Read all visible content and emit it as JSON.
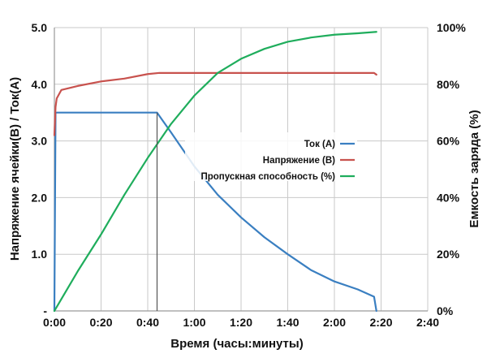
{
  "chart_data": {
    "type": "line",
    "xlabel": "Время (часы:минуты)",
    "ylabel_left": "Напряжение ячейки(В) / Ток(А)",
    "ylabel_right": "Емкость заряда (%)",
    "x_ticks": [
      "0:00",
      "0:20",
      "0:40",
      "1:00",
      "1:20",
      "1:40",
      "2:00",
      "2:20",
      "2:40"
    ],
    "x_range_minutes": [
      0,
      160
    ],
    "y_left_ticks": [
      "-",
      "1.0",
      "2.0",
      "3.0",
      "4.0",
      "5.0"
    ],
    "y_left_range": [
      0,
      5
    ],
    "y_right_ticks": [
      "0%",
      "20%",
      "40%",
      "60%",
      "80%",
      "100%"
    ],
    "y_right_range": [
      0,
      100
    ],
    "grid": true,
    "legend_position": "center-right",
    "series": [
      {
        "name": "Ток (A)",
        "axis": "left",
        "color": "#3a7fc1",
        "x": [
          0,
          0.5,
          1,
          5,
          20,
          40,
          44,
          50,
          60,
          70,
          80,
          90,
          100,
          110,
          120,
          130,
          137,
          138
        ],
        "y": [
          0,
          3.5,
          3.5,
          3.5,
          3.5,
          3.5,
          3.5,
          3.15,
          2.55,
          2.05,
          1.65,
          1.3,
          1.0,
          0.72,
          0.52,
          0.38,
          0.25,
          0
        ]
      },
      {
        "name": "Напряжение (В)",
        "axis": "left",
        "color": "#c8524e",
        "x": [
          0,
          0.5,
          1,
          3,
          10,
          20,
          30,
          40,
          45,
          60,
          80,
          100,
          120,
          130,
          137,
          138
        ],
        "y": [
          3.1,
          3.6,
          3.75,
          3.9,
          3.97,
          4.05,
          4.1,
          4.18,
          4.2,
          4.2,
          4.2,
          4.2,
          4.2,
          4.2,
          4.2,
          4.17
        ]
      },
      {
        "name": "Пропускная способность (%)",
        "axis": "right",
        "color": "#1fad5c",
        "x": [
          0,
          10,
          20,
          30,
          40,
          50,
          60,
          70,
          80,
          90,
          100,
          110,
          120,
          130,
          138
        ],
        "y": [
          0,
          14,
          27,
          41,
          54,
          66,
          76,
          84,
          89,
          92.5,
          95,
          96.5,
          97.5,
          98,
          98.5
        ]
      }
    ],
    "annotations": [
      {
        "type": "vertical-line",
        "x": 44,
        "y_from": 0,
        "y_to": 3.5
      }
    ]
  }
}
